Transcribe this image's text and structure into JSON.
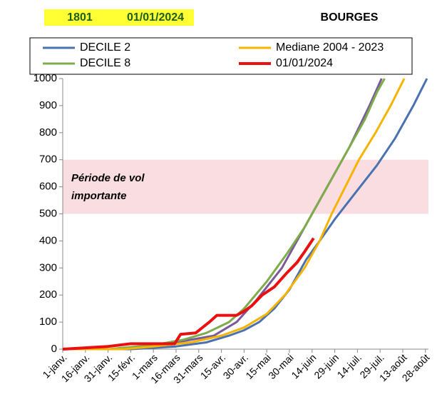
{
  "chart_data": {
    "type": "line",
    "code": "1801",
    "date": "01/01/2024",
    "title": "BOURGES",
    "xlim": [
      0,
      242
    ],
    "ylim": [
      0,
      1000
    ],
    "yticks": [
      0,
      100,
      200,
      300,
      400,
      500,
      600,
      700,
      800,
      900,
      1000
    ],
    "xticks": [
      {
        "value": 0,
        "label": "1-janv."
      },
      {
        "value": 15,
        "label": "16-janv."
      },
      {
        "value": 30,
        "label": "31-janv."
      },
      {
        "value": 45,
        "label": "15-févr."
      },
      {
        "value": 60,
        "label": "1-mars"
      },
      {
        "value": 75,
        "label": "16-mars"
      },
      {
        "value": 90,
        "label": "31-mars"
      },
      {
        "value": 105,
        "label": "15-avr."
      },
      {
        "value": 120,
        "label": "30-avr."
      },
      {
        "value": 135,
        "label": "15-mai"
      },
      {
        "value": 150,
        "label": "30-mai"
      },
      {
        "value": 165,
        "label": "14-juin"
      },
      {
        "value": 180,
        "label": "29-juin"
      },
      {
        "value": 195,
        "label": "14-juil."
      },
      {
        "value": 210,
        "label": "29-juil."
      },
      {
        "value": 225,
        "label": "13-août"
      },
      {
        "value": 240,
        "label": "28-août"
      }
    ],
    "band": {
      "range": [
        500,
        700
      ],
      "color": "#fadde1",
      "text": [
        "Période de vol",
        "importante"
      ]
    },
    "series": [
      {
        "name": "DECILE 2",
        "color": "#4a72b0",
        "x": [
          0,
          45,
          75,
          95,
          110,
          120,
          130,
          140,
          150,
          161,
          170,
          180,
          194,
          208,
          220,
          232,
          241
        ],
        "values": [
          0,
          0,
          10,
          25,
          50,
          70,
          100,
          150,
          220,
          330,
          400,
          480,
          580,
          680,
          780,
          900,
          1000
        ]
      },
      {
        "name": "Mediane 2004 - 2023",
        "color": "#f5b400",
        "x": [
          0,
          40,
          60,
          85,
          105,
          120,
          135,
          147,
          160,
          170,
          178,
          187,
          196,
          207,
          217,
          226
        ],
        "values": [
          0,
          0,
          10,
          25,
          50,
          80,
          130,
          200,
          300,
          400,
          500,
          600,
          700,
          800,
          900,
          1000
        ]
      },
      {
        "name": "DECILE 8",
        "color": "#7fac4a",
        "x": [
          0,
          30,
          60,
          80,
          95,
          110,
          120,
          135,
          148,
          160,
          170,
          180,
          190,
          200,
          208,
          213
        ],
        "values": [
          0,
          0,
          15,
          35,
          60,
          100,
          150,
          250,
          350,
          450,
          550,
          650,
          750,
          850,
          950,
          1000
        ]
      },
      {
        "name": "01/01/2024",
        "color": "#e81010",
        "x": [
          0,
          15,
          30,
          45,
          74,
          78,
          88,
          97,
          102,
          115,
          120,
          125,
          132,
          140,
          148,
          155,
          160,
          166
        ],
        "values": [
          0,
          5,
          10,
          20,
          20,
          55,
          60,
          100,
          125,
          125,
          140,
          160,
          200,
          230,
          280,
          320,
          360,
          410
        ]
      },
      {
        "color": "#7a5a9a",
        "x": [
          0,
          40,
          80,
          100,
          115,
          128,
          145,
          160,
          175,
          190,
          203,
          211
        ],
        "values": [
          0,
          0,
          30,
          50,
          100,
          180,
          300,
          450,
          600,
          750,
          900,
          1000
        ]
      }
    ]
  }
}
